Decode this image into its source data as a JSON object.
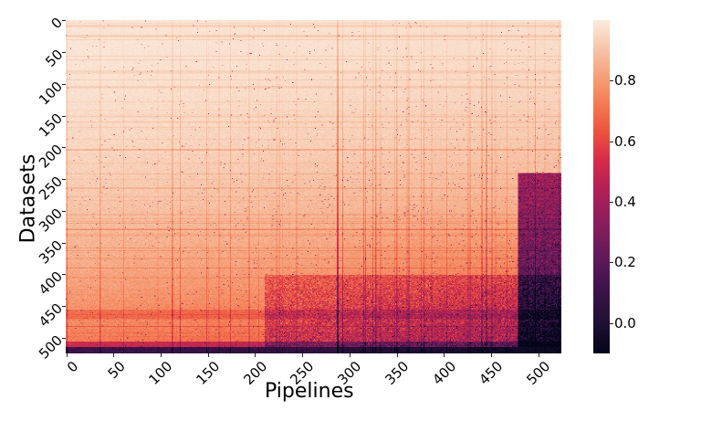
{
  "chart_data": {
    "type": "heatmap",
    "title": "",
    "xlabel": "Pipelines",
    "ylabel": "Datasets",
    "x_ticks": [
      "0",
      "50",
      "100",
      "150",
      "200",
      "250",
      "300",
      "350",
      "400",
      "450",
      "500"
    ],
    "y_ticks": [
      "0",
      "50",
      "100",
      "150",
      "200",
      "250",
      "300",
      "350",
      "400",
      "450",
      "500"
    ],
    "x_range": [
      0,
      525
    ],
    "y_range": [
      0,
      525
    ],
    "n_rows": 525,
    "n_cols": 525,
    "colormap": "rocket",
    "colorbar": {
      "ticks": [
        "0.0",
        "0.2",
        "0.4",
        "0.6",
        "0.8"
      ],
      "vmin": -0.1,
      "vmax": 1.0
    },
    "grid": false,
    "legend_position": "right (colorbar)",
    "description": "Score matrix of datasets (rows) vs pipelines (columns); values near 1.0 (light cream) dominate upper-left, values decrease toward the bottom rows and right-most columns; a dark (near 0) block around pipelines ~480-525 and datasets ~250-525; bottom rows (~515-525) near 0 across all pipelines; notable light/dark bands near datasets ~280 and ~460."
  },
  "axes": {
    "xlabel": "Pipelines",
    "ylabel": "Datasets"
  }
}
